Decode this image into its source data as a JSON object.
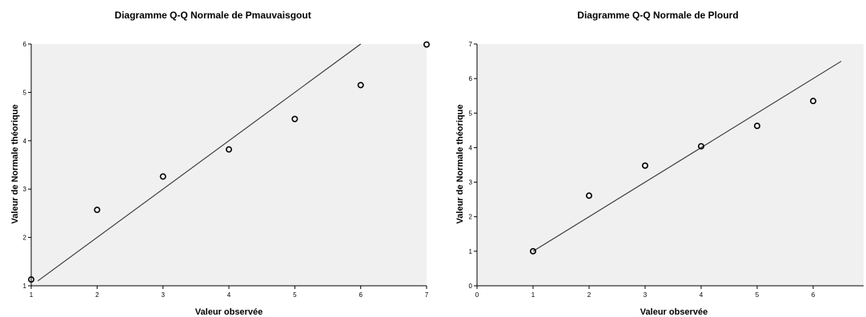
{
  "chart_data": [
    {
      "type": "scatter",
      "title": "Diagramme Q-Q Normale de Pmauvaisgout",
      "xlabel": "Valeur observée",
      "ylabel": "Valeur de Normale théorique",
      "xlim": [
        1,
        7
      ],
      "ylim": [
        1,
        6
      ],
      "xticks": [
        1,
        2,
        3,
        4,
        5,
        6,
        7
      ],
      "yticks": [
        1,
        2,
        3,
        4,
        5,
        6
      ],
      "grid": false,
      "points": [
        {
          "x": 1,
          "y": 1.13
        },
        {
          "x": 2,
          "y": 2.57
        },
        {
          "x": 3,
          "y": 3.26
        },
        {
          "x": 4,
          "y": 3.82
        },
        {
          "x": 5,
          "y": 4.45
        },
        {
          "x": 6,
          "y": 5.15
        },
        {
          "x": 7,
          "y": 5.99
        }
      ],
      "reference_line": {
        "x": [
          1.1,
          6.0
        ],
        "y": [
          1.1,
          6.0
        ]
      }
    },
    {
      "type": "scatter",
      "title": "Diagramme Q-Q Normale de Plourd",
      "xlabel": "Valeur observée",
      "ylabel": "Valeur de Normale théorique",
      "xlim": [
        0,
        6.9
      ],
      "ylim": [
        0,
        7
      ],
      "xticks": [
        0,
        1,
        2,
        3,
        4,
        5,
        6
      ],
      "yticks": [
        0,
        1,
        2,
        3,
        4,
        5,
        6,
        7
      ],
      "grid": false,
      "points": [
        {
          "x": 1,
          "y": 1.0
        },
        {
          "x": 2,
          "y": 2.61
        },
        {
          "x": 3,
          "y": 3.48
        },
        {
          "x": 4,
          "y": 4.04
        },
        {
          "x": 5,
          "y": 4.63
        },
        {
          "x": 6,
          "y": 5.35
        }
      ],
      "reference_line": {
        "x": [
          1.0,
          6.5
        ],
        "y": [
          1.0,
          6.5
        ]
      }
    }
  ]
}
